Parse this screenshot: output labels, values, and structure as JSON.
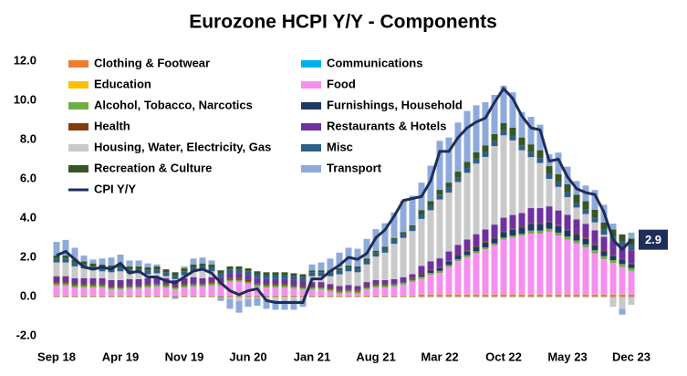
{
  "chart_data": {
    "type": "bar",
    "stacked": true,
    "title": "Eurozone HCPI Y/Y - Components",
    "categories": [
      "Sep 18",
      null,
      null,
      null,
      null,
      null,
      null,
      "Apr 19",
      null,
      null,
      null,
      null,
      null,
      null,
      "Nov 19",
      null,
      null,
      null,
      null,
      null,
      null,
      "Jun 20",
      null,
      null,
      null,
      null,
      null,
      null,
      "Jan 21",
      null,
      null,
      null,
      null,
      null,
      null,
      "Aug 21",
      null,
      null,
      null,
      null,
      null,
      null,
      "Mar 22",
      null,
      null,
      null,
      null,
      null,
      null,
      "Oct 22",
      null,
      null,
      null,
      null,
      null,
      null,
      "May 23",
      null,
      null,
      null,
      null,
      null,
      null,
      "Dec 23"
    ],
    "ylim": [
      -2,
      12
    ],
    "yticks": [
      {
        "value": -2,
        "label": "-2.0"
      },
      {
        "value": 0,
        "label": "0.0"
      },
      {
        "value": 2,
        "label": "2.0"
      },
      {
        "value": 4,
        "label": "4.0"
      },
      {
        "value": 6,
        "label": "6.0"
      },
      {
        "value": 8,
        "label": "8.0"
      },
      {
        "value": 10,
        "label": "10.0"
      },
      {
        "value": 12,
        "label": "12.0"
      }
    ],
    "grid": false,
    "legend": "upper left",
    "series": [
      {
        "name": "Clothing & Footwear",
        "color": "#ed7d31",
        "values": [
          0.05,
          0.05,
          0.05,
          0.05,
          0.05,
          0.05,
          0.05,
          0.05,
          0.05,
          0.05,
          0.05,
          0.05,
          0.05,
          0.05,
          0.05,
          0.05,
          0.05,
          0.05,
          0.05,
          0.05,
          0.05,
          0.05,
          0.05,
          0.05,
          0.05,
          0.05,
          0.05,
          0.05,
          0.05,
          0.05,
          0.05,
          0.05,
          0.05,
          0.05,
          0.05,
          0.05,
          0.05,
          0.05,
          0.05,
          0.05,
          0.1,
          0.1,
          0.1,
          0.1,
          0.1,
          0.1,
          0.1,
          0.1,
          0.1,
          0.1,
          0.1,
          0.1,
          0.1,
          0.1,
          0.1,
          0.1,
          0.1,
          0.1,
          0.1,
          0.1,
          0.1,
          0.1,
          0.1,
          0.1
        ]
      },
      {
        "name": "Communications",
        "color": "#00b0f0",
        "values": [
          -0.02,
          -0.02,
          -0.02,
          -0.02,
          -0.02,
          -0.02,
          -0.02,
          -0.02,
          -0.02,
          -0.02,
          -0.02,
          -0.02,
          -0.02,
          -0.02,
          -0.02,
          -0.02,
          -0.02,
          -0.02,
          -0.02,
          -0.02,
          -0.02,
          -0.02,
          -0.02,
          -0.02,
          -0.02,
          -0.02,
          -0.02,
          -0.02,
          -0.02,
          -0.02,
          -0.02,
          -0.02,
          -0.02,
          -0.02,
          -0.02,
          -0.02,
          -0.02,
          -0.02,
          -0.02,
          -0.02,
          -0.02,
          -0.02,
          -0.02,
          -0.02,
          -0.02,
          -0.02,
          -0.02,
          -0.02,
          -0.02,
          -0.02,
          -0.02,
          -0.02,
          -0.02,
          -0.02,
          -0.02,
          -0.02,
          -0.02,
          -0.02,
          -0.02,
          -0.02,
          -0.02,
          -0.02,
          -0.02,
          -0.02
        ]
      },
      {
        "name": "Education",
        "color": "#ffc000",
        "values": [
          0.01,
          0.01,
          0.01,
          0.01,
          0.01,
          0.01,
          0.01,
          0.01,
          0.01,
          0.01,
          0.01,
          0.01,
          0.01,
          0.01,
          0.01,
          0.01,
          0.01,
          0.01,
          0.01,
          0.01,
          0.01,
          0.01,
          0.01,
          0.01,
          0.01,
          0.01,
          0.01,
          0.01,
          0.01,
          0.01,
          0.01,
          0.01,
          0.01,
          0.01,
          0.01,
          0.01,
          0.01,
          0.01,
          0.01,
          0.01,
          0.01,
          0.01,
          0.01,
          0.01,
          0.01,
          0.01,
          0.01,
          0.01,
          0.01,
          0.01,
          0.01,
          0.01,
          0.01,
          0.01,
          0.01,
          0.01,
          0.01,
          0.01,
          0.01,
          0.01,
          0.01,
          0.01,
          0.01,
          0.01
        ]
      },
      {
        "name": "Food",
        "color": "#f48ff0",
        "values": [
          0.5,
          0.5,
          0.4,
          0.4,
          0.4,
          0.4,
          0.3,
          0.3,
          0.35,
          0.35,
          0.4,
          0.45,
          0.4,
          0.3,
          0.4,
          0.45,
          0.45,
          0.5,
          0.5,
          0.7,
          0.7,
          0.6,
          0.45,
          0.4,
          0.4,
          0.4,
          0.35,
          0.3,
          0.3,
          0.3,
          0.2,
          0.1,
          0.15,
          0.1,
          0.3,
          0.4,
          0.4,
          0.45,
          0.55,
          0.7,
          0.8,
          1.0,
          1.1,
          1.4,
          1.7,
          1.9,
          2.1,
          2.3,
          2.5,
          2.8,
          2.9,
          3.0,
          3.1,
          3.1,
          3.2,
          3.0,
          2.8,
          2.6,
          2.4,
          2.1,
          1.8,
          1.6,
          1.4,
          1.2
        ]
      },
      {
        "name": "Alcohol, Tobacco, Narcotics",
        "color": "#70ad47",
        "values": [
          0.1,
          0.1,
          0.1,
          0.1,
          0.1,
          0.1,
          0.1,
          0.1,
          0.1,
          0.1,
          0.1,
          0.1,
          0.1,
          0.1,
          0.1,
          0.1,
          0.1,
          0.1,
          0.1,
          0.1,
          0.1,
          0.1,
          0.1,
          0.1,
          0.1,
          0.1,
          0.1,
          0.1,
          0.1,
          0.1,
          0.1,
          0.1,
          0.1,
          0.1,
          0.1,
          0.1,
          0.1,
          0.1,
          0.1,
          0.1,
          0.1,
          0.1,
          0.1,
          0.1,
          0.1,
          0.1,
          0.1,
          0.1,
          0.1,
          0.1,
          0.1,
          0.1,
          0.15,
          0.15,
          0.15,
          0.15,
          0.15,
          0.15,
          0.15,
          0.15,
          0.15,
          0.15,
          0.15,
          0.15
        ]
      },
      {
        "name": "Furnishings, Household",
        "color": "#203864",
        "values": [
          0.03,
          0.03,
          0.03,
          0.03,
          0.03,
          0.03,
          0.03,
          0.03,
          0.03,
          0.03,
          0.03,
          0.03,
          0.03,
          0.03,
          0.03,
          0.03,
          0.03,
          0.03,
          0.03,
          0.03,
          0.03,
          0.03,
          0.03,
          0.03,
          0.03,
          0.03,
          0.03,
          0.03,
          0.03,
          0.03,
          0.03,
          0.03,
          0.03,
          0.03,
          0.03,
          0.03,
          0.03,
          0.03,
          0.03,
          0.03,
          0.1,
          0.12,
          0.14,
          0.16,
          0.18,
          0.2,
          0.22,
          0.24,
          0.26,
          0.28,
          0.3,
          0.3,
          0.35,
          0.35,
          0.34,
          0.33,
          0.32,
          0.3,
          0.28,
          0.26,
          0.24,
          0.22,
          0.2,
          0.2
        ]
      },
      {
        "name": "Health",
        "color": "#843c0c",
        "values": [
          0.05,
          0.05,
          0.05,
          0.05,
          0.05,
          0.05,
          0.05,
          0.05,
          0.05,
          0.05,
          0.05,
          0.05,
          0.05,
          0.05,
          0.05,
          0.05,
          0.05,
          0.05,
          0.05,
          0.05,
          0.05,
          0.05,
          0.05,
          0.05,
          0.05,
          0.05,
          0.05,
          0.05,
          0.05,
          0.05,
          0.05,
          0.05,
          0.05,
          0.05,
          0.05,
          0.05,
          0.05,
          0.05,
          0.05,
          0.05,
          0.05,
          0.05,
          0.05,
          0.05,
          0.05,
          0.05,
          0.05,
          0.05,
          0.05,
          0.05,
          0.05,
          0.05,
          0.05,
          0.05,
          0.05,
          0.05,
          0.05,
          0.05,
          0.05,
          0.05,
          0.05,
          0.05,
          0.05,
          0.05
        ]
      },
      {
        "name": "Restaurants & Hotels",
        "color": "#7030a0",
        "values": [
          0.3,
          0.3,
          0.3,
          0.3,
          0.3,
          0.3,
          0.3,
          0.3,
          0.3,
          0.3,
          0.3,
          0.3,
          0.3,
          0.3,
          0.3,
          0.3,
          0.25,
          0.25,
          0.25,
          0.25,
          0.25,
          0.25,
          0.25,
          0.25,
          0.25,
          0.25,
          0.25,
          0.25,
          0.2,
          0.2,
          0.2,
          0.2,
          0.2,
          0.2,
          0.2,
          0.2,
          0.2,
          0.2,
          0.2,
          0.2,
          0.4,
          0.42,
          0.45,
          0.48,
          0.5,
          0.55,
          0.6,
          0.62,
          0.65,
          0.68,
          0.7,
          0.7,
          0.75,
          0.75,
          0.75,
          0.75,
          0.74,
          0.73,
          0.72,
          0.71,
          0.7,
          0.68,
          0.66,
          0.65
        ]
      },
      {
        "name": "Housing, Water, Electricity, Gas",
        "color": "#c9c9c9",
        "values": [
          0.7,
          0.7,
          0.6,
          0.5,
          0.4,
          0.35,
          0.4,
          0.45,
          0.3,
          0.3,
          0.2,
          0.2,
          0.1,
          0.05,
          0.15,
          0.3,
          0.4,
          0.3,
          0.0,
          -0.1,
          -0.2,
          -0.1,
          -0.05,
          -0.1,
          -0.15,
          -0.15,
          -0.15,
          -0.1,
          0.3,
          0.3,
          0.4,
          0.6,
          0.7,
          0.7,
          0.9,
          1.2,
          1.4,
          1.8,
          2.0,
          2.2,
          2.4,
          2.6,
          3.0,
          3.0,
          3.2,
          3.4,
          3.6,
          3.7,
          4.0,
          4.2,
          3.8,
          3.2,
          2.6,
          2.3,
          1.4,
          1.2,
          0.9,
          0.6,
          0.5,
          0.4,
          0.1,
          -0.5,
          -0.6,
          -0.4
        ]
      },
      {
        "name": "Misc",
        "color": "#2e5f8a",
        "values": [
          0.2,
          0.2,
          0.2,
          0.2,
          0.2,
          0.2,
          0.2,
          0.2,
          0.2,
          0.2,
          0.2,
          0.2,
          0.2,
          0.2,
          0.2,
          0.2,
          0.2,
          0.2,
          0.2,
          0.2,
          0.2,
          0.2,
          0.2,
          0.2,
          0.2,
          0.2,
          0.2,
          0.2,
          0.2,
          0.2,
          0.2,
          0.2,
          0.2,
          0.2,
          0.2,
          0.2,
          0.2,
          0.2,
          0.2,
          0.2,
          0.25,
          0.25,
          0.25,
          0.25,
          0.25,
          0.25,
          0.25,
          0.25,
          0.25,
          0.25,
          0.25,
          0.25,
          0.25,
          0.25,
          0.25,
          0.25,
          0.25,
          0.25,
          0.25,
          0.25,
          0.25,
          0.25,
          0.25,
          0.25
        ]
      },
      {
        "name": "Recreation & Culture",
        "color": "#375623",
        "values": [
          0.15,
          0.15,
          0.15,
          0.15,
          0.15,
          0.15,
          0.15,
          0.15,
          0.15,
          0.15,
          0.15,
          0.15,
          0.15,
          0.15,
          0.15,
          0.15,
          0.15,
          0.15,
          0.15,
          0.15,
          0.15,
          0.15,
          0.15,
          0.15,
          0.15,
          0.15,
          0.15,
          0.15,
          0.1,
          0.1,
          0.1,
          0.1,
          0.1,
          0.1,
          0.1,
          0.1,
          0.1,
          0.1,
          0.1,
          0.1,
          0.2,
          0.22,
          0.24,
          0.26,
          0.28,
          0.3,
          0.32,
          0.34,
          0.36,
          0.38,
          0.4,
          0.4,
          0.4,
          0.4,
          0.4,
          0.4,
          0.4,
          0.4,
          0.4,
          0.4,
          0.38,
          0.36,
          0.35,
          0.35
        ]
      },
      {
        "name": "Transport",
        "color": "#8eaadb",
        "values": [
          0.7,
          0.8,
          0.6,
          0.3,
          0.2,
          0.3,
          0.4,
          0.5,
          0.3,
          0.3,
          0.2,
          0.1,
          0.0,
          -0.1,
          0.1,
          0.3,
          0.3,
          0.2,
          -0.2,
          -0.5,
          -0.6,
          -0.4,
          -0.4,
          -0.5,
          -0.5,
          -0.5,
          -0.5,
          -0.4,
          0.3,
          0.4,
          0.6,
          0.8,
          0.9,
          0.9,
          1.0,
          1.1,
          1.2,
          1.3,
          1.6,
          1.5,
          1.4,
          1.8,
          2.5,
          2.3,
          2.5,
          2.6,
          2.4,
          2.2,
          2.0,
          1.9,
          1.8,
          1.3,
          1.4,
          1.3,
          0.6,
          1.1,
          0.9,
          0.7,
          0.8,
          1.0,
          0.9,
          0.3,
          -0.3,
          0.3
        ]
      },
      {
        "name": "CPI Y/Y",
        "type": "line",
        "color": "#1f2d5a",
        "values": [
          2.1,
          2.3,
          1.9,
          1.5,
          1.4,
          1.5,
          1.4,
          1.7,
          1.2,
          1.3,
          1.0,
          1.0,
          0.8,
          0.7,
          1.0,
          1.3,
          1.4,
          1.2,
          0.7,
          0.3,
          0.1,
          0.3,
          0.4,
          -0.2,
          -0.3,
          -0.3,
          -0.3,
          -0.3,
          0.9,
          0.9,
          1.3,
          1.6,
          2.0,
          1.9,
          2.2,
          3.0,
          3.4,
          4.1,
          4.9,
          5.0,
          5.1,
          5.9,
          7.4,
          7.4,
          8.1,
          8.6,
          8.9,
          9.1,
          9.9,
          10.6,
          10.1,
          9.2,
          8.6,
          8.5,
          6.9,
          7.0,
          6.1,
          5.5,
          5.3,
          5.2,
          4.3,
          2.9,
          2.4,
          2.9
        ]
      }
    ]
  }
}
